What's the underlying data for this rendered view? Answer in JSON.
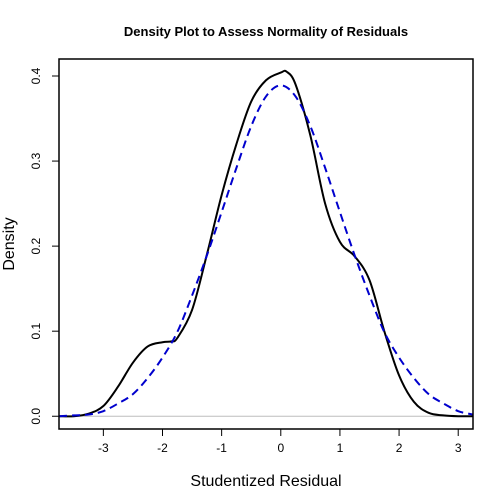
{
  "chart_data": {
    "type": "line",
    "title": "Density Plot to Assess Normality of Residuals",
    "xlabel": "Studentized Residual",
    "ylabel": "Density",
    "xlim": [
      -3.75,
      3.25
    ],
    "ylim": [
      -0.015,
      0.42
    ],
    "x_ticks": [
      -3,
      -2,
      -1,
      0,
      1,
      2,
      3
    ],
    "y_ticks": [
      0.0,
      0.1,
      0.2,
      0.3,
      0.4
    ],
    "x_tick_labels": [
      "-3",
      "-2",
      "-1",
      "0",
      "1",
      "2",
      "3"
    ],
    "y_tick_labels": [
      "0.0",
      "0.1",
      "0.2",
      "0.3",
      "0.4"
    ],
    "baseline": 0,
    "grid": false,
    "colors": {
      "kernel_density": "#000000",
      "normal_curve": "#0000CD",
      "baseline": "#BEBEBE"
    },
    "series": [
      {
        "style": "solid",
        "x": [
          -3.75,
          -3.5,
          -3.25,
          -3.0,
          -2.75,
          -2.5,
          -2.25,
          -2.0,
          -1.85,
          -1.75,
          -1.5,
          -1.25,
          -1.0,
          -0.75,
          -0.5,
          -0.25,
          0.0,
          0.1,
          0.25,
          0.5,
          0.75,
          1.0,
          1.25,
          1.5,
          1.75,
          2.0,
          2.25,
          2.5,
          2.75,
          3.0,
          3.25
        ],
        "y": [
          0.0,
          0.0,
          0.003,
          0.012,
          0.035,
          0.063,
          0.082,
          0.087,
          0.088,
          0.092,
          0.125,
          0.19,
          0.26,
          0.32,
          0.37,
          0.395,
          0.404,
          0.405,
          0.39,
          0.33,
          0.25,
          0.205,
          0.188,
          0.16,
          0.1,
          0.048,
          0.017,
          0.004,
          0.001,
          0.0,
          0.0
        ]
      },
      {
        "style": "dashed",
        "x": [
          -3.75,
          -3.5,
          -3.25,
          -3.0,
          -2.75,
          -2.5,
          -2.25,
          -2.0,
          -1.75,
          -1.5,
          -1.25,
          -1.0,
          -0.75,
          -0.5,
          -0.25,
          0.0,
          0.25,
          0.5,
          0.75,
          1.0,
          1.25,
          1.5,
          1.75,
          2.0,
          2.25,
          2.5,
          2.75,
          3.0,
          3.25
        ],
        "y": [
          0.0,
          0.001,
          0.002,
          0.006,
          0.015,
          0.026,
          0.045,
          0.069,
          0.099,
          0.142,
          0.189,
          0.24,
          0.292,
          0.341,
          0.376,
          0.389,
          0.376,
          0.341,
          0.292,
          0.24,
          0.189,
          0.142,
          0.099,
          0.069,
          0.045,
          0.026,
          0.015,
          0.006,
          0.002
        ]
      }
    ]
  }
}
